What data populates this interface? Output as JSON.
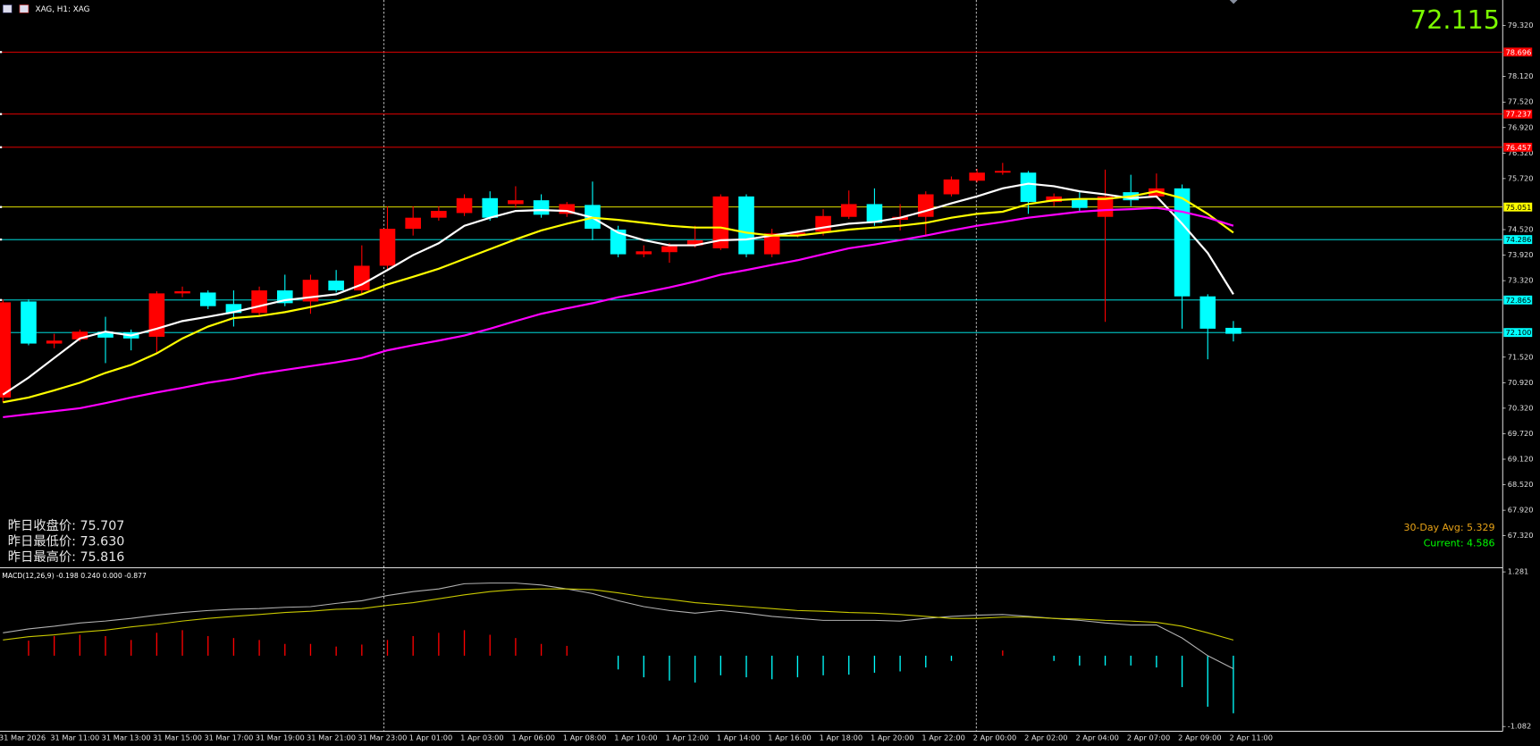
{
  "chart_data": [
    {
      "type": "candlestick",
      "title": "XAG, H1: XAG",
      "categories": [
        "31 Mar 2026",
        null,
        "31 Mar 11:00",
        null,
        "31 Mar 13:00",
        null,
        "31 Mar 15:00",
        null,
        "31 Mar 17:00",
        null,
        "31 Mar 19:00",
        null,
        "31 Mar 21:00",
        null,
        "31 Mar 23:00",
        null,
        "1 Apr 01:00",
        null,
        "1 Apr 03:00",
        null,
        "1 Apr 06:00",
        null,
        "1 Apr 08:00",
        null,
        "1 Apr 10:00",
        null,
        "1 Apr 12:00",
        null,
        "1 Apr 14:00",
        null,
        "1 Apr 16:00",
        null,
        "1 Apr 18:00",
        null,
        "1 Apr 20:00",
        null,
        "1 Apr 22:00",
        null,
        "2 Apr 00:00",
        null,
        "2 Apr 02:00",
        null,
        "2 Apr 04:00",
        null,
        "2 Apr 07:00",
        null,
        "2 Apr 09:00",
        null,
        "2 Apr 11:00"
      ],
      "open": [
        70.57,
        72.83,
        71.84,
        71.94,
        72.12,
        72.1,
        72.0,
        73.02,
        73.04,
        72.77,
        72.56,
        73.09,
        72.83,
        73.32,
        73.09,
        73.67,
        74.54,
        74.8,
        74.91,
        75.26,
        75.12,
        75.21,
        74.89,
        75.1,
        74.52,
        73.94,
        73.99,
        74.15,
        74.08,
        75.3,
        73.94,
        74.38,
        74.47,
        74.82,
        75.12,
        74.75,
        74.82,
        75.35,
        75.67,
        75.86,
        75.86,
        75.17,
        75.24,
        74.82,
        75.4,
        75.3,
        75.49,
        72.95,
        72.21
      ],
      "high": [
        72.88,
        72.88,
        72.07,
        72.17,
        72.47,
        72.17,
        73.07,
        73.18,
        73.09,
        73.09,
        73.18,
        73.46,
        73.46,
        73.57,
        74.15,
        75.07,
        75.07,
        75.07,
        75.35,
        75.42,
        75.54,
        75.35,
        75.17,
        75.65,
        74.61,
        74.15,
        74.2,
        74.61,
        75.35,
        75.35,
        74.54,
        74.5,
        75.0,
        75.44,
        75.49,
        75.12,
        75.42,
        75.77,
        75.95,
        76.09,
        75.9,
        75.37,
        75.4,
        75.93,
        75.81,
        75.84,
        75.58,
        73.0,
        72.37
      ],
      "low": [
        70.46,
        71.8,
        71.73,
        71.89,
        71.38,
        71.68,
        71.61,
        72.93,
        72.65,
        72.24,
        72.49,
        72.72,
        72.54,
        73.04,
        73.0,
        73.57,
        74.38,
        74.73,
        74.84,
        74.73,
        75.03,
        74.8,
        74.82,
        74.27,
        73.87,
        73.87,
        73.74,
        74.1,
        74.04,
        73.87,
        73.87,
        74.34,
        74.38,
        74.77,
        74.61,
        74.5,
        74.38,
        75.3,
        75.63,
        75.81,
        74.89,
        75.07,
        74.94,
        72.35,
        75.07,
        75.26,
        72.19,
        71.47,
        71.89
      ],
      "close": [
        72.81,
        71.84,
        71.91,
        72.12,
        71.98,
        71.96,
        73.02,
        73.07,
        72.72,
        72.56,
        73.09,
        72.79,
        73.34,
        73.09,
        73.67,
        74.54,
        74.8,
        74.96,
        75.26,
        74.8,
        75.21,
        74.87,
        75.12,
        74.54,
        73.94,
        74.01,
        74.13,
        74.27,
        75.3,
        73.94,
        74.43,
        74.45,
        74.84,
        75.12,
        74.68,
        74.82,
        75.35,
        75.7,
        75.86,
        75.9,
        75.17,
        75.3,
        75.03,
        75.3,
        75.21,
        75.49,
        72.95,
        72.19,
        72.07
      ],
      "up_color": "#ff0000",
      "down_color": "#00ffff",
      "moving_averages": [
        {
          "color": "#ffffff",
          "values": [
            70.64,
            71.04,
            71.5,
            71.96,
            72.12,
            72.03,
            72.19,
            72.37,
            72.47,
            72.58,
            72.72,
            72.86,
            72.93,
            73.0,
            73.23,
            73.57,
            73.92,
            74.2,
            74.61,
            74.8,
            74.96,
            74.98,
            74.96,
            74.8,
            74.45,
            74.27,
            74.15,
            74.15,
            74.27,
            74.29,
            74.38,
            74.47,
            74.57,
            74.66,
            74.7,
            74.8,
            74.96,
            75.14,
            75.3,
            75.49,
            75.6,
            75.54,
            75.42,
            75.35,
            75.26,
            75.3,
            74.66,
            73.97,
            73.0
          ]
        },
        {
          "color": "#ffff00",
          "values": [
            70.46,
            70.57,
            70.74,
            70.92,
            71.15,
            71.34,
            71.61,
            71.96,
            72.24,
            72.44,
            72.49,
            72.58,
            72.7,
            72.83,
            73.0,
            73.23,
            73.41,
            73.6,
            73.83,
            74.06,
            74.29,
            74.5,
            74.66,
            74.8,
            74.75,
            74.68,
            74.61,
            74.57,
            74.57,
            74.45,
            74.38,
            74.38,
            74.45,
            74.52,
            74.57,
            74.61,
            74.68,
            74.8,
            74.89,
            74.94,
            75.12,
            75.21,
            75.24,
            75.24,
            75.3,
            75.42,
            75.26,
            74.89,
            74.45
          ]
        },
        {
          "color": "#ff00ff",
          "values": [
            70.11,
            70.18,
            70.25,
            70.32,
            70.44,
            70.57,
            70.69,
            70.8,
            70.92,
            71.01,
            71.13,
            71.22,
            71.31,
            71.4,
            71.5,
            71.68,
            71.8,
            71.91,
            72.03,
            72.19,
            72.37,
            72.54,
            72.67,
            72.79,
            72.93,
            73.04,
            73.16,
            73.3,
            73.46,
            73.57,
            73.69,
            73.8,
            73.94,
            74.08,
            74.17,
            74.27,
            74.38,
            74.5,
            74.61,
            74.7,
            74.8,
            74.87,
            74.94,
            74.98,
            75.0,
            75.03,
            74.94,
            74.8,
            74.61
          ]
        }
      ],
      "levels": [
        78.696,
        77.237,
        76.457,
        75.051,
        74.286,
        72.865,
        {
          "value": 72.1,
          "label": "72.100"
        }
      ],
      "level_colors": [
        "#ff0000",
        "#ff0000",
        "#ff0000",
        "#ffff00",
        "#00ffff",
        "#00ffff",
        "#00ffff"
      ],
      "ylim": [
        66.6,
        79.92
      ],
      "yticks": [
        {
          "value": 79.32,
          "label": "79.320"
        },
        {
          "value": 78.12,
          "label": "78.120"
        },
        {
          "value": 77.52,
          "label": "77.520"
        },
        {
          "value": 76.92,
          "label": "76.920"
        },
        {
          "value": 76.32,
          "label": "76.320"
        },
        {
          "value": 75.72,
          "label": "75.720"
        },
        {
          "value": 74.52,
          "label": "74.520"
        },
        {
          "value": 73.92,
          "label": "73.920"
        },
        {
          "value": 73.32,
          "label": "73.320"
        },
        {
          "value": 71.52,
          "label": "71.520"
        },
        {
          "value": 70.92,
          "label": "70.920"
        },
        {
          "value": 70.32,
          "label": "70.320"
        },
        {
          "value": 69.72,
          "label": "69.720"
        },
        {
          "value": 69.12,
          "label": "69.120"
        },
        {
          "value": 68.52,
          "label": "68.520"
        },
        {
          "value": 67.92,
          "label": "67.920"
        },
        {
          "value": 67.32,
          "label": "67.320"
        }
      ],
      "current_price": 72.115,
      "info_lines": [
        "昨日收盘价: 75.707",
        "昨日最低价: 73.630",
        "昨日最高价: 75.816"
      ],
      "stats": [
        "30-Day Avg: 5.329",
        "Current: 4.586"
      ]
    },
    {
      "type": "macd",
      "title": "MACD(12,26,9) -0.198 0.240 0.000 -0.877",
      "histogram": [
        null,
        0.23,
        0.3,
        0.32,
        0.3,
        0.24,
        0.35,
        0.39,
        0.3,
        0.27,
        0.24,
        0.18,
        0.18,
        0.14,
        0.17,
        0.24,
        0.3,
        0.35,
        0.39,
        0.32,
        0.27,
        0.18,
        0.15,
        null,
        -0.21,
        -0.33,
        -0.38,
        -0.41,
        -0.3,
        -0.33,
        -0.36,
        -0.33,
        -0.3,
        -0.29,
        -0.26,
        -0.24,
        -0.18,
        -0.08,
        null,
        0.08,
        null,
        -0.08,
        -0.15,
        -0.15,
        -0.15,
        -0.18,
        -0.48,
        -0.78,
        -0.88
      ],
      "macd": [
        0.35,
        0.41,
        0.45,
        0.5,
        0.53,
        0.57,
        0.62,
        0.66,
        0.69,
        0.71,
        0.72,
        0.74,
        0.75,
        0.8,
        0.84,
        0.92,
        0.98,
        1.02,
        1.1,
        1.11,
        1.11,
        1.08,
        1.02,
        0.95,
        0.84,
        0.75,
        0.69,
        0.65,
        0.69,
        0.65,
        0.6,
        0.57,
        0.54,
        0.54,
        0.54,
        0.53,
        0.57,
        0.6,
        0.62,
        0.63,
        0.6,
        0.57,
        0.54,
        0.5,
        0.47,
        0.47,
        0.27,
        0.0,
        -0.2
      ],
      "signal": [
        0.24,
        0.29,
        0.32,
        0.36,
        0.39,
        0.44,
        0.48,
        0.53,
        0.57,
        0.6,
        0.63,
        0.66,
        0.68,
        0.71,
        0.72,
        0.77,
        0.81,
        0.87,
        0.93,
        0.98,
        1.01,
        1.02,
        1.02,
        1.01,
        0.96,
        0.9,
        0.86,
        0.81,
        0.78,
        0.75,
        0.72,
        0.69,
        0.68,
        0.66,
        0.65,
        0.63,
        0.6,
        0.57,
        0.57,
        0.59,
        0.59,
        0.57,
        0.56,
        0.54,
        0.53,
        0.51,
        0.45,
        0.35,
        0.24
      ],
      "hist_up_color": "#ff0000",
      "hist_down_color": "#00ffff",
      "macd_color": "#b0b0b0",
      "signal_color": "#c8c800",
      "ylim": [
        -1.23,
        1.32
      ],
      "yticks": [
        1.281,
        -1.082
      ]
    }
  ]
}
